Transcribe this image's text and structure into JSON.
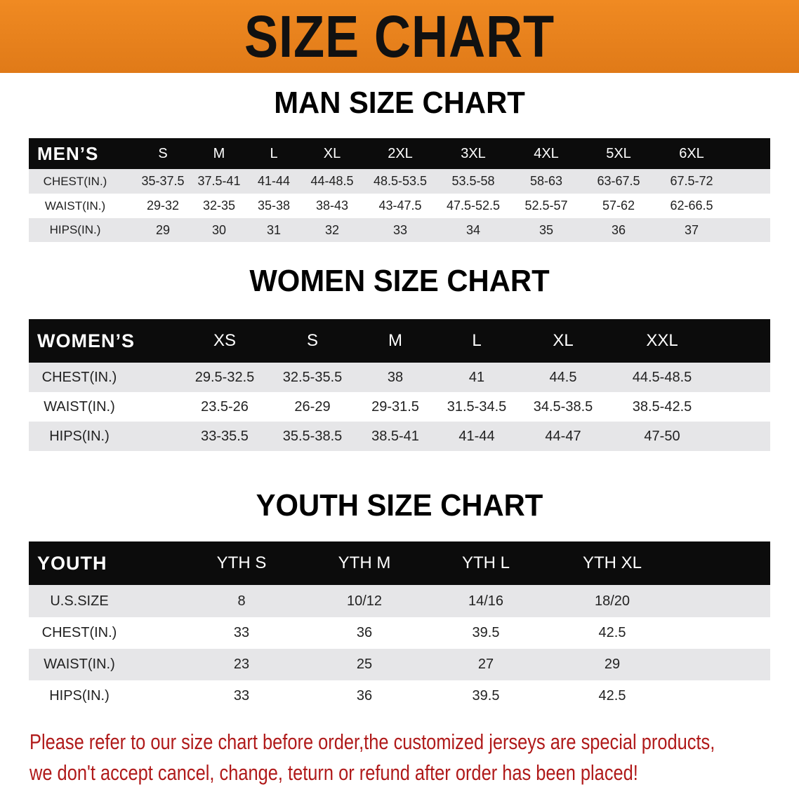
{
  "banner": {
    "title": "SIZE CHART",
    "color": "#e8801f"
  },
  "men": {
    "title": "MAN SIZE CHART",
    "header": "MEN’S",
    "sizes": [
      "S",
      "M",
      "L",
      "XL",
      "2XL",
      "3XL",
      "4XL",
      "5XL",
      "6XL"
    ],
    "rows": [
      {
        "label": "CHEST(IN.)",
        "values": [
          "35-37.5",
          "37.5-41",
          "41-44",
          "44-48.5",
          "48.5-53.5",
          "53.5-58",
          "58-63",
          "63-67.5",
          "67.5-72"
        ]
      },
      {
        "label": "WAIST(IN.)",
        "values": [
          "29-32",
          "32-35",
          "35-38",
          "38-43",
          "43-47.5",
          "47.5-52.5",
          "52.5-57",
          "57-62",
          "62-66.5"
        ]
      },
      {
        "label": "HIPS(IN.)",
        "values": [
          "29",
          "30",
          "31",
          "32",
          "33",
          "34",
          "35",
          "36",
          "37"
        ]
      }
    ]
  },
  "women": {
    "title": "WOMEN SIZE CHART",
    "header": "WOMEN’S",
    "sizes": [
      "XS",
      "S",
      "M",
      "L",
      "XL",
      "XXL"
    ],
    "rows": [
      {
        "label": "CHEST(IN.)",
        "values": [
          "29.5-32.5",
          "32.5-35.5",
          "38",
          "41",
          "44.5",
          "44.5-48.5"
        ]
      },
      {
        "label": "WAIST(IN.)",
        "values": [
          "23.5-26",
          "26-29",
          "29-31.5",
          "31.5-34.5",
          "34.5-38.5",
          "38.5-42.5"
        ]
      },
      {
        "label": "HIPS(IN.)",
        "values": [
          "33-35.5",
          "35.5-38.5",
          "38.5-41",
          "41-44",
          "44-47",
          "47-50"
        ]
      }
    ]
  },
  "youth": {
    "title": "YOUTH SIZE CHART",
    "header": "YOUTH",
    "sizes": [
      "YTH S",
      "YTH M",
      "YTH L",
      "YTH XL"
    ],
    "rows": [
      {
        "label": "U.S.SIZE",
        "values": [
          "8",
          "10/12",
          "14/16",
          "18/20"
        ]
      },
      {
        "label": "CHEST(IN.)",
        "values": [
          "33",
          "36",
          "39.5",
          "42.5"
        ]
      },
      {
        "label": "WAIST(IN.)",
        "values": [
          "23",
          "25",
          "27",
          "29"
        ]
      },
      {
        "label": "HIPS(IN.)",
        "values": [
          "33",
          "36",
          "39.5",
          "42.5"
        ]
      }
    ]
  },
  "note": {
    "line1": "Please refer to our size chart before order,the customized jerseys are special products,",
    "line2": "we don't accept cancel, change, teturn or refund after order has been placed!",
    "color": "#b01a1a"
  }
}
